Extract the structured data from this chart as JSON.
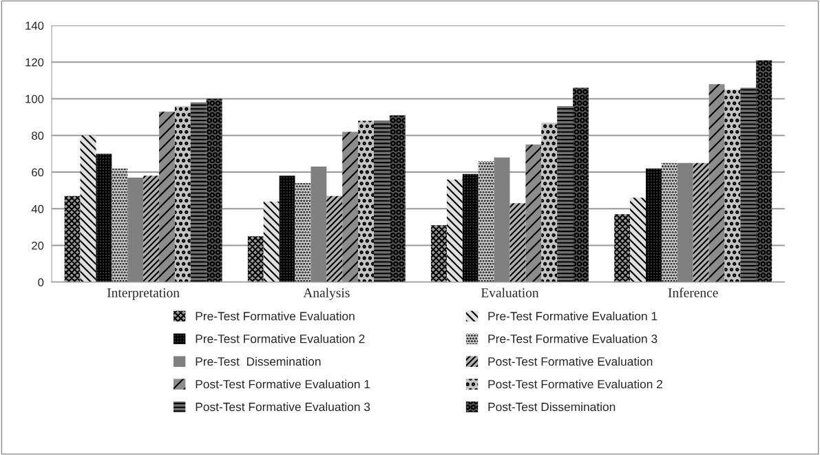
{
  "chart_data": {
    "type": "bar",
    "categories": [
      "Interpretation",
      "Analysis",
      "Evaluation",
      "Inference"
    ],
    "series": [
      {
        "name": "Pre-Test Formative Evaluation",
        "color": "#9a9a9a",
        "values": [
          47,
          25,
          31,
          37
        ]
      },
      {
        "name": "Pre-Test Formative Evaluation 1",
        "color": "#e0e0e0",
        "values": [
          80,
          44,
          56,
          46
        ]
      },
      {
        "name": "Pre-Test Formative Evaluation 2",
        "color": "#3a3a3a",
        "values": [
          70,
          58,
          59,
          62
        ]
      },
      {
        "name": "Pre-Test Formative Evaluation 3",
        "color": "#d0d0d0",
        "values": [
          62,
          54,
          66,
          65
        ]
      },
      {
        "name": "Pre-Test  Dissemination",
        "color": "#808080",
        "values": [
          57,
          63,
          68,
          65
        ]
      },
      {
        "name": "Post-Test Formative Evaluation",
        "color": "#b0b0b0",
        "values": [
          58,
          47,
          43,
          65
        ]
      },
      {
        "name": "Post-Test Formative Evaluation 1",
        "color": "#8c8c8c",
        "values": [
          93,
          82,
          75,
          108
        ]
      },
      {
        "name": "Post-Test Formative Evaluation 2",
        "color": "#c4c4c4",
        "values": [
          96,
          88,
          87,
          105
        ]
      },
      {
        "name": "Post-Test Formative Evaluation 3",
        "color": "#707070",
        "values": [
          98,
          88,
          96,
          106
        ]
      },
      {
        "name": "Post-Test Dissemination",
        "color": "#5a5a5a",
        "values": [
          100,
          91,
          106,
          121
        ]
      }
    ],
    "ylim": [
      0,
      140
    ],
    "yticks": [
      0,
      20,
      40,
      60,
      80,
      100,
      120,
      140
    ],
    "grid": "y",
    "legend": "bottom"
  }
}
